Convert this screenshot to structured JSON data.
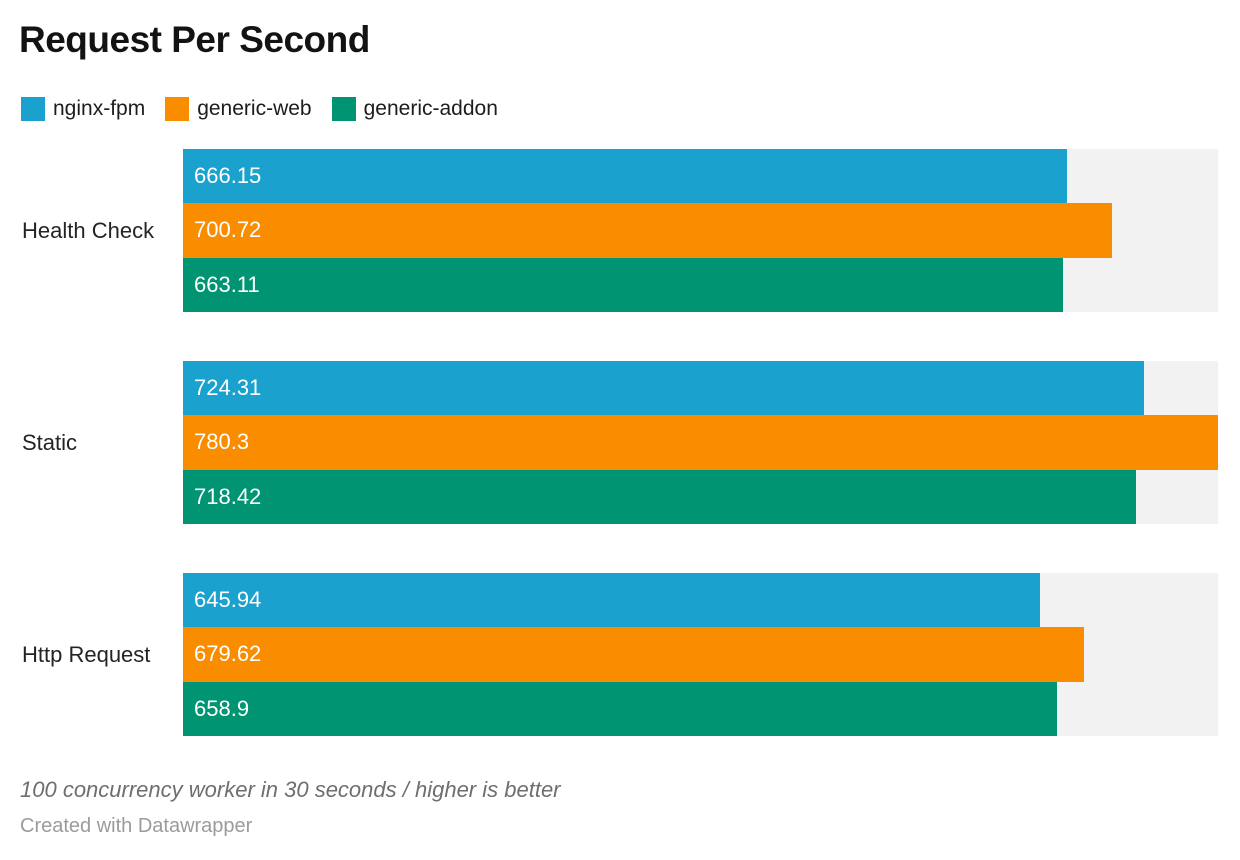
{
  "title": "Request Per Second",
  "footer": {
    "note": "100 concurrency worker in 30 seconds / higher is better",
    "credit": "Created with Datawrapper"
  },
  "colors": {
    "series_blue": "#1AA1CE",
    "series_orange": "#FA8C00",
    "series_green": "#009472",
    "track_gray": "#F2F2F2",
    "value_label": "#FFFFFF"
  },
  "chart_data": {
    "type": "bar",
    "orientation": "horizontal",
    "grouped": true,
    "grid": false,
    "legend_position": "top-left",
    "categories": [
      "Health Check",
      "Static",
      "Http Request"
    ],
    "series": [
      {
        "name": "nginx-fpm",
        "color": "#1AA1CE",
        "values": [
          666.15,
          724.31,
          645.94
        ]
      },
      {
        "name": "generic-web",
        "color": "#FA8C00",
        "values": [
          700.72,
          780.3,
          679.62
        ]
      },
      {
        "name": "generic-addon",
        "color": "#009472",
        "values": [
          663.11,
          718.42,
          658.9
        ]
      }
    ],
    "xlim": [
      0,
      780.3
    ],
    "track_color": "#F2F2F2",
    "value_labels_shown": true,
    "title": "Request Per Second",
    "xlabel": "",
    "ylabel": ""
  }
}
